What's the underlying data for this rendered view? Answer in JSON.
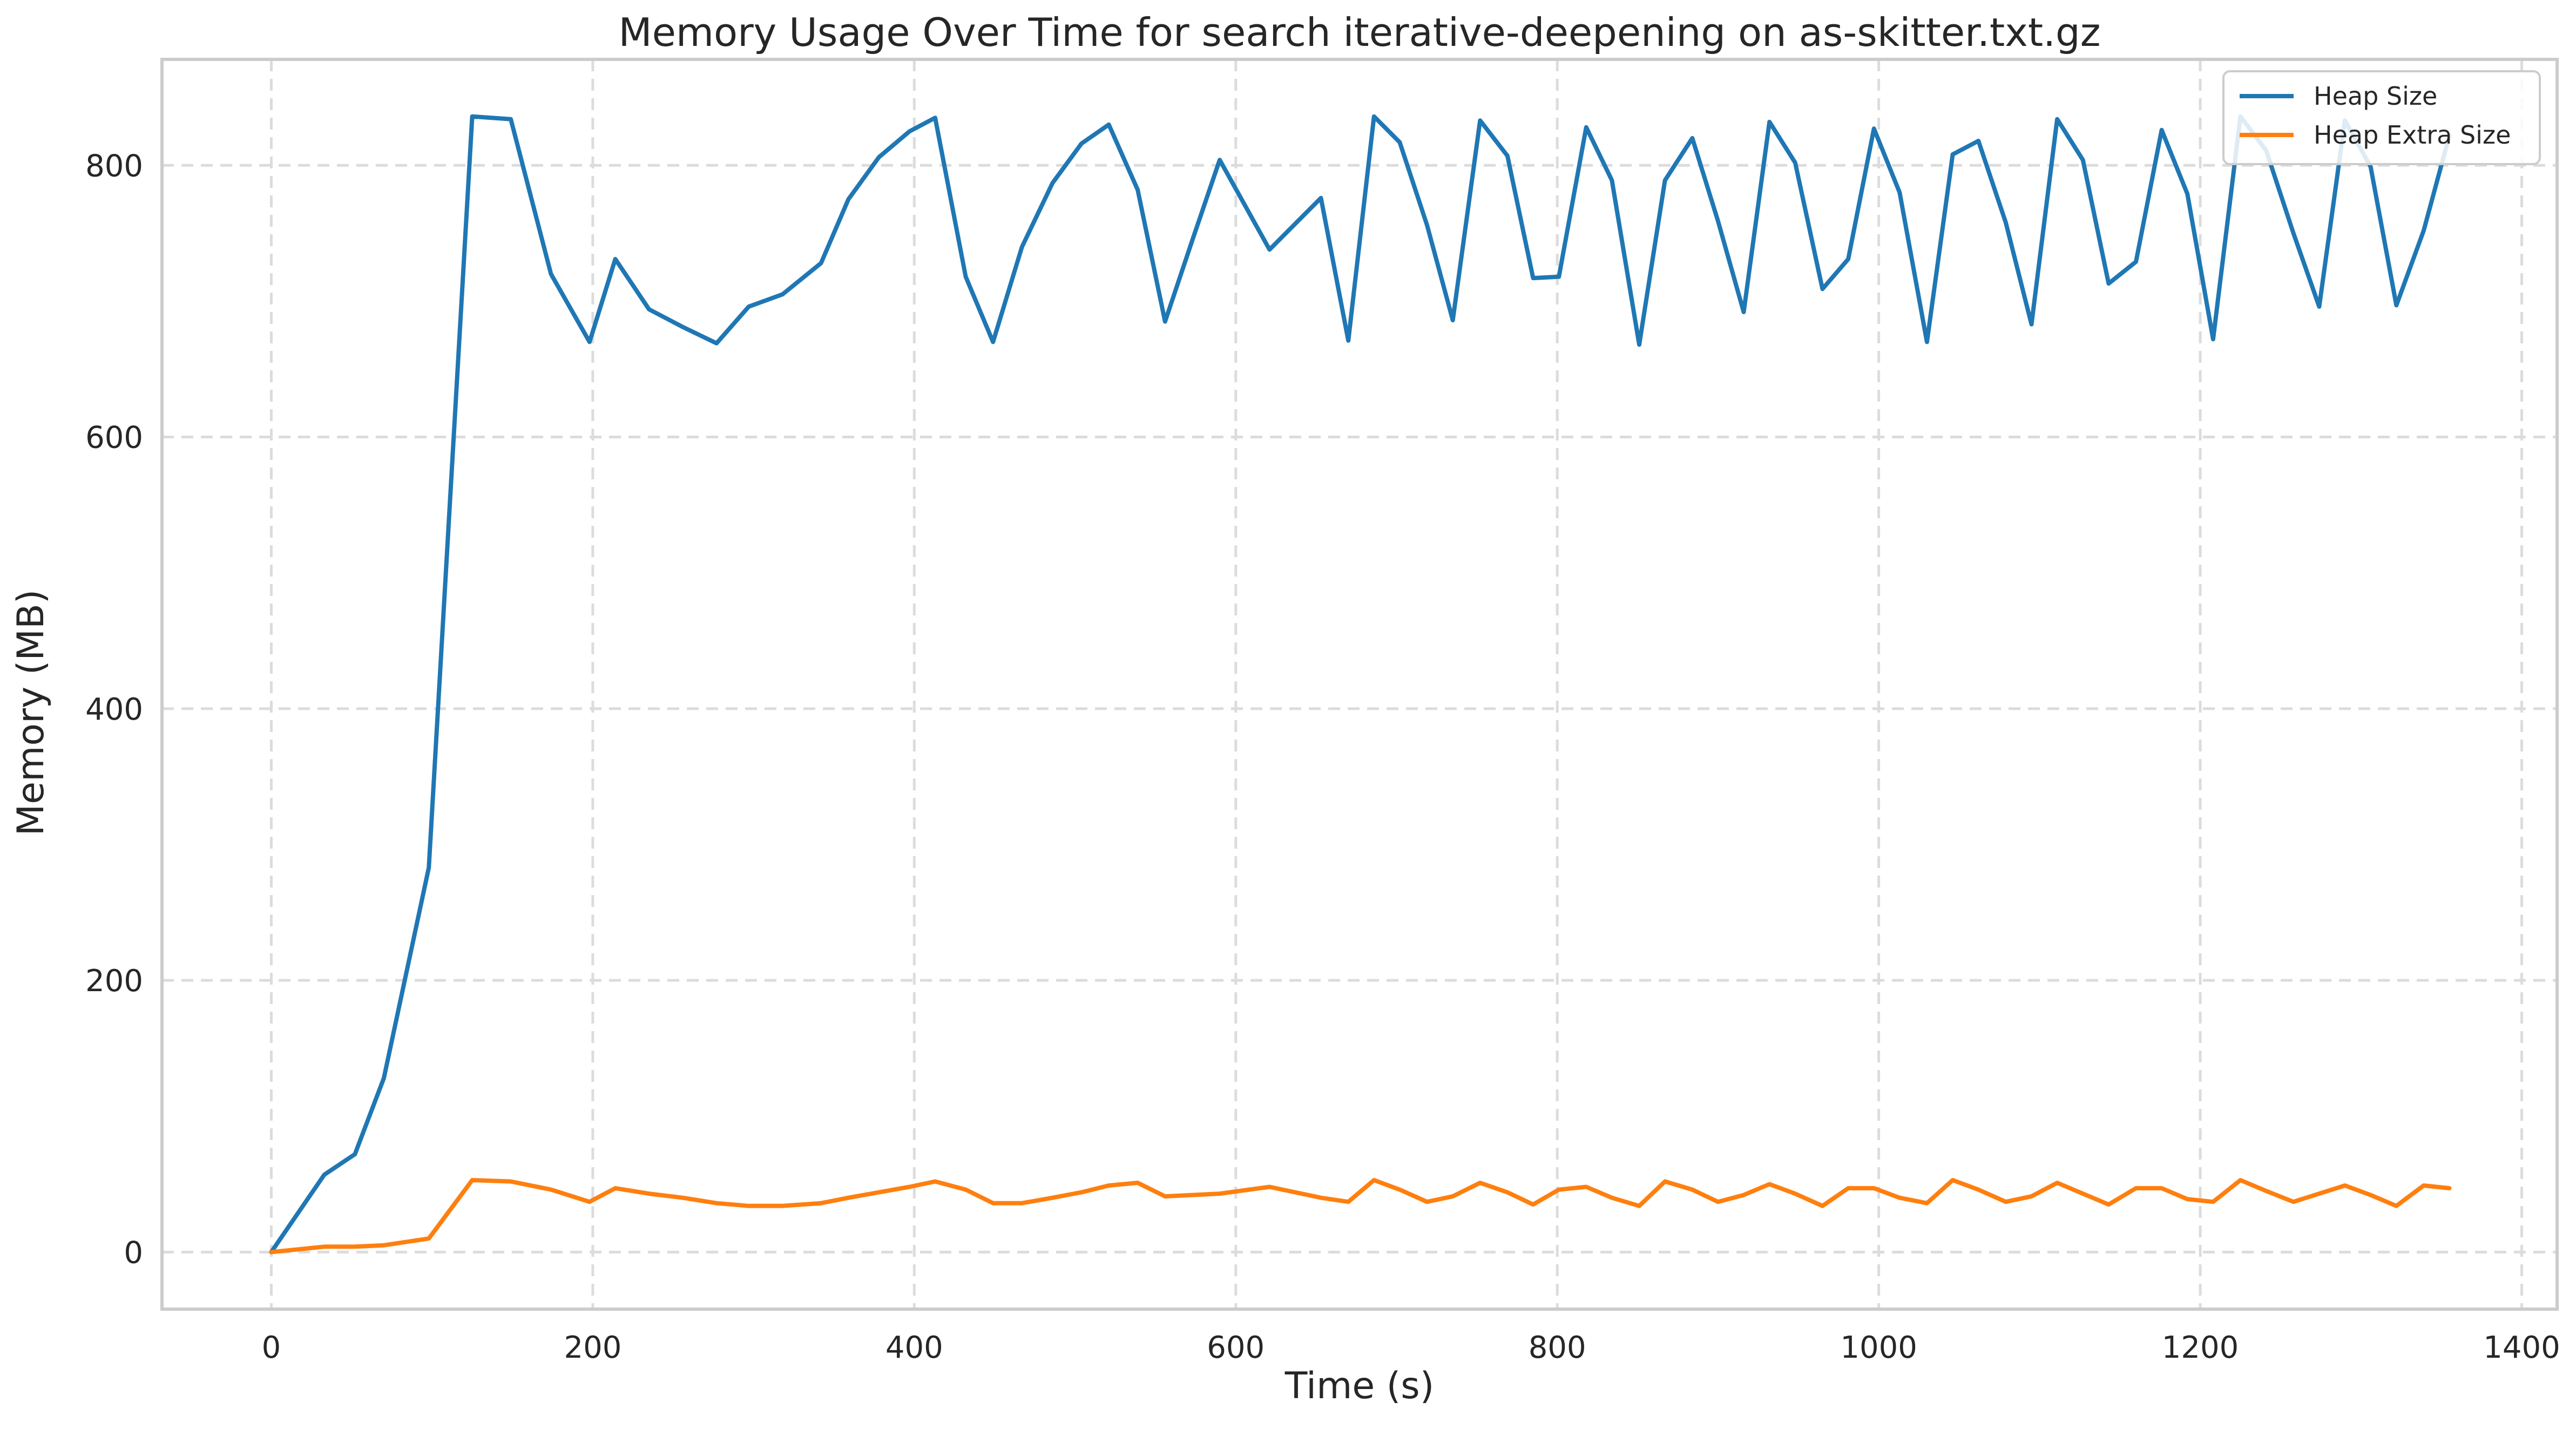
{
  "chart_data": {
    "type": "line",
    "title": "Memory Usage Over Time for search iterative-deepening on as-skitter.txt.gz",
    "xlabel": "Time (s)",
    "ylabel": "Memory (MB)",
    "xlim": [
      -68,
      1422
    ],
    "ylim": [
      -42,
      878
    ],
    "xticks": [
      0,
      200,
      400,
      600,
      800,
      1000,
      1200,
      1400
    ],
    "yticks": [
      0,
      200,
      400,
      600,
      800
    ],
    "grid": true,
    "legend_position": "top-right",
    "series": [
      {
        "name": "Heap Size",
        "color": "#1f77b4",
        "points": [
          [
            0,
            0
          ],
          [
            33,
            57
          ],
          [
            52,
            72
          ],
          [
            70,
            128
          ],
          [
            98,
            283
          ],
          [
            125,
            836
          ],
          [
            149,
            834
          ],
          [
            174,
            720
          ],
          [
            198,
            670
          ],
          [
            214,
            731
          ],
          [
            235,
            694
          ],
          [
            256,
            681
          ],
          [
            277,
            669
          ],
          [
            297,
            696
          ],
          [
            318,
            705
          ],
          [
            342,
            728
          ],
          [
            359,
            775
          ],
          [
            378,
            806
          ],
          [
            397,
            825
          ],
          [
            413,
            835
          ],
          [
            432,
            718
          ],
          [
            449,
            670
          ],
          [
            467,
            740
          ],
          [
            486,
            787
          ],
          [
            504,
            816
          ],
          [
            521,
            830
          ],
          [
            539,
            782
          ],
          [
            556,
            685
          ],
          [
            573,
            745
          ],
          [
            590,
            804
          ],
          [
            621,
            738
          ],
          [
            653,
            776
          ],
          [
            670,
            671
          ],
          [
            686,
            836
          ],
          [
            702,
            817
          ],
          [
            719,
            756
          ],
          [
            735,
            686
          ],
          [
            752,
            833
          ],
          [
            769,
            807
          ],
          [
            785,
            717
          ],
          [
            801,
            718
          ],
          [
            818,
            828
          ],
          [
            834,
            789
          ],
          [
            851,
            668
          ],
          [
            867,
            789
          ],
          [
            884,
            820
          ],
          [
            900,
            759
          ],
          [
            916,
            692
          ],
          [
            932,
            832
          ],
          [
            948,
            802
          ],
          [
            965,
            709
          ],
          [
            981,
            731
          ],
          [
            997,
            827
          ],
          [
            1013,
            780
          ],
          [
            1030,
            670
          ],
          [
            1046,
            808
          ],
          [
            1062,
            818
          ],
          [
            1079,
            758
          ],
          [
            1095,
            683
          ],
          [
            1111,
            834
          ],
          [
            1127,
            804
          ],
          [
            1143,
            713
          ],
          [
            1160,
            729
          ],
          [
            1176,
            826
          ],
          [
            1192,
            779
          ],
          [
            1208,
            672
          ],
          [
            1225,
            836
          ],
          [
            1241,
            811
          ],
          [
            1258,
            750
          ],
          [
            1274,
            696
          ],
          [
            1290,
            833
          ],
          [
            1306,
            799
          ],
          [
            1322,
            697
          ],
          [
            1339,
            752
          ],
          [
            1355,
            822
          ]
        ]
      },
      {
        "name": "Heap Extra Size",
        "color": "#ff7f0e",
        "points": [
          [
            0,
            0
          ],
          [
            33,
            4
          ],
          [
            52,
            4
          ],
          [
            70,
            5
          ],
          [
            98,
            10
          ],
          [
            125,
            53
          ],
          [
            149,
            52
          ],
          [
            174,
            46
          ],
          [
            198,
            37
          ],
          [
            214,
            47
          ],
          [
            235,
            43
          ],
          [
            256,
            40
          ],
          [
            277,
            36
          ],
          [
            297,
            34
          ],
          [
            318,
            34
          ],
          [
            342,
            36
          ],
          [
            359,
            40
          ],
          [
            378,
            44
          ],
          [
            397,
            48
          ],
          [
            413,
            52
          ],
          [
            432,
            46
          ],
          [
            449,
            36
          ],
          [
            467,
            36
          ],
          [
            486,
            40
          ],
          [
            504,
            44
          ],
          [
            521,
            49
          ],
          [
            539,
            51
          ],
          [
            556,
            41
          ],
          [
            573,
            42
          ],
          [
            590,
            43
          ],
          [
            621,
            48
          ],
          [
            653,
            40
          ],
          [
            670,
            37
          ],
          [
            686,
            53
          ],
          [
            702,
            46
          ],
          [
            719,
            37
          ],
          [
            735,
            41
          ],
          [
            752,
            51
          ],
          [
            769,
            44
          ],
          [
            785,
            35
          ],
          [
            801,
            46
          ],
          [
            818,
            48
          ],
          [
            834,
            40
          ],
          [
            851,
            34
          ],
          [
            867,
            52
          ],
          [
            884,
            46
          ],
          [
            900,
            37
          ],
          [
            916,
            42
          ],
          [
            932,
            50
          ],
          [
            948,
            43
          ],
          [
            965,
            34
          ],
          [
            981,
            47
          ],
          [
            997,
            47
          ],
          [
            1013,
            40
          ],
          [
            1030,
            36
          ],
          [
            1046,
            53
          ],
          [
            1062,
            46
          ],
          [
            1079,
            37
          ],
          [
            1095,
            41
          ],
          [
            1111,
            51
          ],
          [
            1127,
            43
          ],
          [
            1143,
            35
          ],
          [
            1160,
            47
          ],
          [
            1176,
            47
          ],
          [
            1192,
            39
          ],
          [
            1208,
            37
          ],
          [
            1225,
            53
          ],
          [
            1241,
            45
          ],
          [
            1258,
            37
          ],
          [
            1274,
            43
          ],
          [
            1290,
            49
          ],
          [
            1306,
            42
          ],
          [
            1322,
            34
          ],
          [
            1339,
            49
          ],
          [
            1355,
            47
          ]
        ]
      }
    ]
  }
}
